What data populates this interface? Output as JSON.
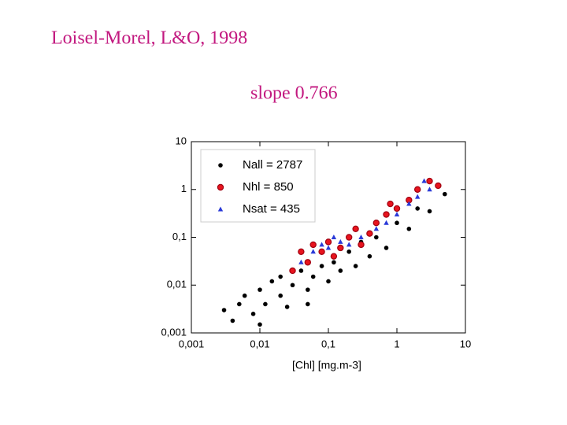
{
  "chart_data": {
    "type": "scatter",
    "title": "Loisel-Morel, L&O, 1998",
    "subtitle": "slope 0.766",
    "x_label": "[Chl]  [mg.m-3]",
    "log_x": true,
    "log_y": true,
    "xlim": [
      0.001,
      10
    ],
    "ylim": [
      0.001,
      10
    ],
    "xticks": [
      {
        "value": 0.001,
        "label": "0,001"
      },
      {
        "value": 0.01,
        "label": "0,01"
      },
      {
        "value": 0.1,
        "label": "0,1"
      },
      1,
      10
    ],
    "yticks": [
      {
        "value": 0.001,
        "label": "0,001"
      },
      {
        "value": 0.01,
        "label": "0,01"
      },
      {
        "value": 0.1,
        "label": "0,1"
      },
      1,
      10
    ],
    "legend": "top-left",
    "series": [
      {
        "name": "Nall = 2787",
        "color": "#000000",
        "marker": "dot",
        "x": [
          0.003,
          0.004,
          0.005,
          0.006,
          0.008,
          0.01,
          0.012,
          0.015,
          0.02,
          0.02,
          0.025,
          0.03,
          0.04,
          0.05,
          0.06,
          0.08,
          0.1,
          0.12,
          0.15,
          0.2,
          0.25,
          0.3,
          0.4,
          0.5,
          0.7,
          1,
          1.5,
          2,
          3,
          5,
          0.01,
          0.05
        ],
        "values": [
          0.003,
          0.0018,
          0.004,
          0.006,
          0.0025,
          0.008,
          0.004,
          0.012,
          0.006,
          0.015,
          0.0035,
          0.01,
          0.02,
          0.008,
          0.015,
          0.025,
          0.012,
          0.03,
          0.02,
          0.05,
          0.025,
          0.08,
          0.04,
          0.1,
          0.06,
          0.2,
          0.15,
          0.4,
          0.35,
          0.8,
          0.0015,
          0.004
        ]
      },
      {
        "name": "Nhl = 850",
        "color": "#e8141e",
        "marker": "circle",
        "x": [
          0.03,
          0.04,
          0.05,
          0.06,
          0.08,
          0.1,
          0.12,
          0.15,
          0.2,
          0.3,
          0.4,
          0.5,
          0.7,
          1,
          1.5,
          2,
          3,
          4,
          0.25,
          0.8
        ],
        "values": [
          0.02,
          0.05,
          0.03,
          0.07,
          0.05,
          0.08,
          0.04,
          0.06,
          0.1,
          0.07,
          0.12,
          0.2,
          0.3,
          0.4,
          0.6,
          1,
          1.5,
          1.2,
          0.15,
          0.5
        ]
      },
      {
        "name": "Nsat = 435",
        "color": "#2a3ad8",
        "marker": "triangle",
        "x": [
          0.04,
          0.06,
          0.08,
          0.1,
          0.15,
          0.2,
          0.3,
          0.5,
          0.7,
          1,
          1.5,
          2,
          2.5,
          3,
          0.12
        ],
        "values": [
          0.03,
          0.05,
          0.07,
          0.06,
          0.08,
          0.07,
          0.1,
          0.15,
          0.2,
          0.3,
          0.5,
          0.7,
          1.5,
          1,
          0.1
        ]
      }
    ]
  }
}
